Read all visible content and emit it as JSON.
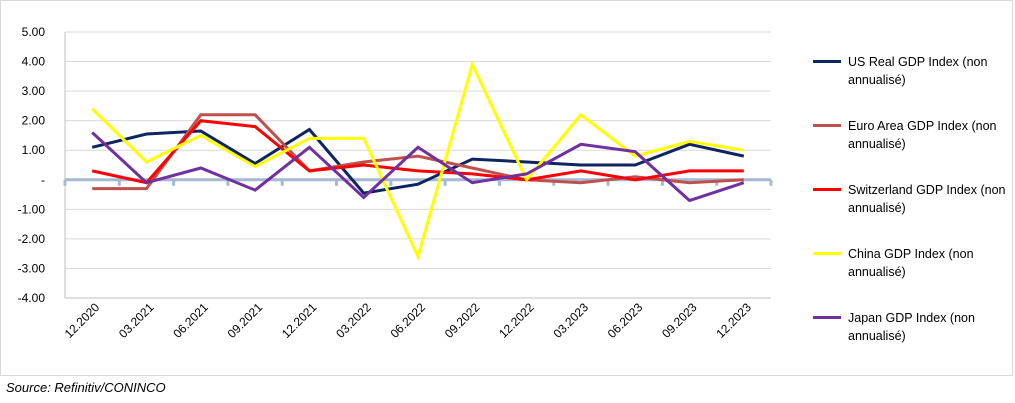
{
  "chart_data": {
    "type": "line",
    "categories": [
      "12.2020",
      "03.2021",
      "06.2021",
      "09.2021",
      "12.2021",
      "03.2022",
      "06.2022",
      "09.2022",
      "12.2022",
      "03.2023",
      "06.2023",
      "09.2023",
      "12.2023"
    ],
    "ylim": [
      -4,
      5
    ],
    "yticks": [
      {
        "value": 5,
        "label": "5.00"
      },
      {
        "value": 4,
        "label": "4.00"
      },
      {
        "value": 3,
        "label": "3.00"
      },
      {
        "value": 2,
        "label": "2.00"
      },
      {
        "value": 1,
        "label": "1.00"
      },
      {
        "value": 0,
        "label": "-"
      },
      {
        "value": -1,
        "label": "-1.00"
      },
      {
        "value": -2,
        "label": "-2.00"
      },
      {
        "value": -3,
        "label": "-3.00"
      },
      {
        "value": -4,
        "label": "-4.00"
      }
    ],
    "grid": true,
    "legend_position": "right",
    "series": [
      {
        "name": "US Real GDP Index (non annualisé)",
        "color": "#0d2561",
        "values": [
          1.1,
          1.55,
          1.65,
          0.55,
          1.7,
          -0.45,
          -0.15,
          0.7,
          0.6,
          0.5,
          0.5,
          1.2,
          0.8
        ]
      },
      {
        "name": "Euro Area GDP Index (non annualisé)",
        "color": "#c0504d",
        "values": [
          -0.3,
          -0.3,
          2.2,
          2.2,
          0.3,
          0.6,
          0.8,
          0.4,
          0.0,
          -0.1,
          0.1,
          -0.1,
          0.0
        ]
      },
      {
        "name": "Switzerland GDP Index (non annualisé)",
        "color": "#ff0000",
        "values": [
          0.3,
          -0.1,
          2.0,
          1.8,
          0.3,
          0.5,
          0.3,
          0.2,
          0.0,
          0.3,
          0.0,
          0.3,
          0.3
        ]
      },
      {
        "name": "China GDP Index (non annualisé)",
        "color": "#ffff00",
        "values": [
          2.4,
          0.6,
          1.5,
          0.45,
          1.4,
          1.4,
          -2.6,
          3.9,
          0.0,
          2.2,
          0.8,
          1.3,
          1.0
        ]
      },
      {
        "name": "Japan GDP Index (non annualisé)",
        "color": "#7030a0",
        "values": [
          1.6,
          -0.1,
          0.4,
          -0.35,
          1.1,
          -0.6,
          1.1,
          -0.1,
          0.2,
          1.2,
          0.95,
          -0.7,
          -0.1
        ]
      }
    ]
  },
  "source": "Source: Refinitiv/CONINCO"
}
